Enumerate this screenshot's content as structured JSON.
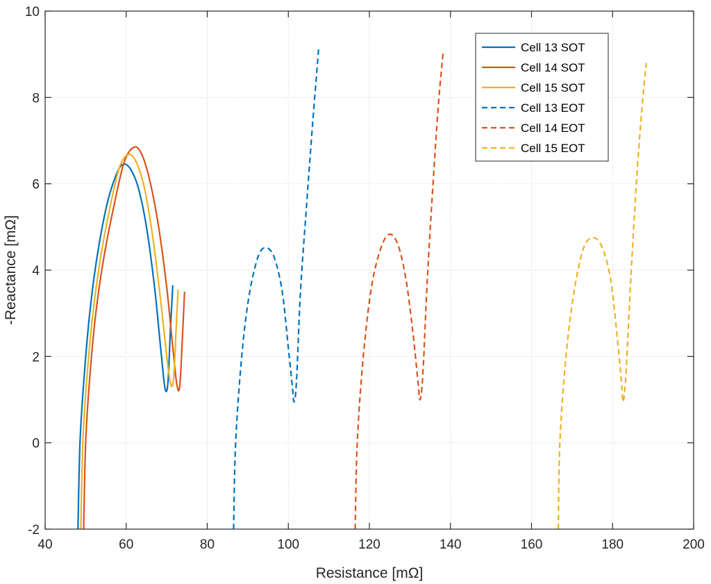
{
  "chart_data": {
    "type": "line",
    "title": "",
    "xlabel": "Resistance [mΩ]",
    "ylabel": "-Reactance [mΩ]",
    "xlim": [
      40,
      200
    ],
    "ylim": [
      -2,
      10
    ],
    "xticks": [
      40,
      60,
      80,
      100,
      120,
      140,
      160,
      180,
      200
    ],
    "yticks": [
      -2,
      0,
      2,
      4,
      6,
      8,
      10
    ],
    "xtick_labels": [
      "40",
      "60",
      "80",
      "100",
      "120",
      "140",
      "160",
      "180",
      "200"
    ],
    "ytick_labels": [
      "-2",
      "0",
      "2",
      "4",
      "6",
      "8",
      "10"
    ],
    "grid": true,
    "legend_position": "top-right",
    "series": [
      {
        "name": "Cell 13 SOT",
        "color": "#0072BD",
        "dash": "solid",
        "points": [
          [
            48.1,
            -2.0
          ],
          [
            48.6,
            0.0
          ],
          [
            49.6,
            1.5
          ],
          [
            51.0,
            3.0
          ],
          [
            52.8,
            4.3
          ],
          [
            55.2,
            5.5
          ],
          [
            57.5,
            6.2
          ],
          [
            59.2,
            6.45
          ],
          [
            61.0,
            6.35
          ],
          [
            63.0,
            5.9
          ],
          [
            65.0,
            5.0
          ],
          [
            67.0,
            3.6
          ],
          [
            68.6,
            2.1
          ],
          [
            69.6,
            1.25
          ],
          [
            70.3,
            1.4
          ],
          [
            70.9,
            2.6
          ],
          [
            71.5,
            3.65
          ]
        ]
      },
      {
        "name": "Cell 14 SOT",
        "color": "#D95319",
        "dash": "solid",
        "points": [
          [
            49.5,
            -2.0
          ],
          [
            50.0,
            0.0
          ],
          [
            51.0,
            1.5
          ],
          [
            52.5,
            3.0
          ],
          [
            54.5,
            4.3
          ],
          [
            57.0,
            5.5
          ],
          [
            59.5,
            6.5
          ],
          [
            62.0,
            6.85
          ],
          [
            64.0,
            6.65
          ],
          [
            66.0,
            6.0
          ],
          [
            68.0,
            5.0
          ],
          [
            70.0,
            3.6
          ],
          [
            71.5,
            2.2
          ],
          [
            72.5,
            1.35
          ],
          [
            73.2,
            1.3
          ],
          [
            73.8,
            2.3
          ],
          [
            74.4,
            3.5
          ]
        ]
      },
      {
        "name": "Cell 15 SOT",
        "color": "#EDB120",
        "dash": "solid",
        "points": [
          [
            48.8,
            -2.0
          ],
          [
            49.3,
            0.0
          ],
          [
            50.3,
            1.5
          ],
          [
            51.8,
            3.0
          ],
          [
            53.7,
            4.3
          ],
          [
            56.1,
            5.5
          ],
          [
            58.4,
            6.4
          ],
          [
            60.6,
            6.68
          ],
          [
            62.5,
            6.5
          ],
          [
            64.5,
            5.9
          ],
          [
            66.5,
            4.8
          ],
          [
            68.5,
            3.3
          ],
          [
            70.0,
            2.0
          ],
          [
            71.0,
            1.35
          ],
          [
            71.7,
            1.5
          ],
          [
            72.3,
            2.6
          ],
          [
            72.8,
            3.55
          ]
        ]
      },
      {
        "name": "Cell 13 EOT",
        "color": "#0072BD",
        "dash": "dashed",
        "points": [
          [
            86.5,
            -2.0
          ],
          [
            87.0,
            0.0
          ],
          [
            88.5,
            2.0
          ],
          [
            90.3,
            3.4
          ],
          [
            92.5,
            4.3
          ],
          [
            94.4,
            4.52
          ],
          [
            96.5,
            4.3
          ],
          [
            98.5,
            3.5
          ],
          [
            100.0,
            2.2
          ],
          [
            101.0,
            1.3
          ],
          [
            101.4,
            0.95
          ],
          [
            102.0,
            1.4
          ],
          [
            103.0,
            3.5
          ],
          [
            104.5,
            5.5
          ],
          [
            106.0,
            7.4
          ],
          [
            107.5,
            9.15
          ]
        ]
      },
      {
        "name": "Cell 14 EOT",
        "color": "#D95319",
        "dash": "dashed",
        "points": [
          [
            116.5,
            -2.0
          ],
          [
            117.0,
            0.0
          ],
          [
            118.5,
            2.0
          ],
          [
            120.5,
            3.6
          ],
          [
            122.8,
            4.5
          ],
          [
            124.9,
            4.83
          ],
          [
            127.0,
            4.6
          ],
          [
            129.0,
            3.8
          ],
          [
            130.8,
            2.5
          ],
          [
            132.0,
            1.4
          ],
          [
            132.5,
            1.0
          ],
          [
            133.2,
            1.6
          ],
          [
            134.3,
            3.8
          ],
          [
            135.7,
            6.0
          ],
          [
            137.0,
            7.8
          ],
          [
            138.2,
            9.05
          ]
        ]
      },
      {
        "name": "Cell 15 EOT",
        "color": "#EDB120",
        "dash": "dashed",
        "points": [
          [
            166.6,
            -2.0
          ],
          [
            167.0,
            0.0
          ],
          [
            168.5,
            2.0
          ],
          [
            170.5,
            3.5
          ],
          [
            172.8,
            4.5
          ],
          [
            175.1,
            4.75
          ],
          [
            177.3,
            4.55
          ],
          [
            179.5,
            3.8
          ],
          [
            181.2,
            2.4
          ],
          [
            182.2,
            1.4
          ],
          [
            182.6,
            0.95
          ],
          [
            183.3,
            1.6
          ],
          [
            184.5,
            3.8
          ],
          [
            186.0,
            6.2
          ],
          [
            187.3,
            7.8
          ],
          [
            188.3,
            8.8
          ]
        ]
      }
    ]
  }
}
